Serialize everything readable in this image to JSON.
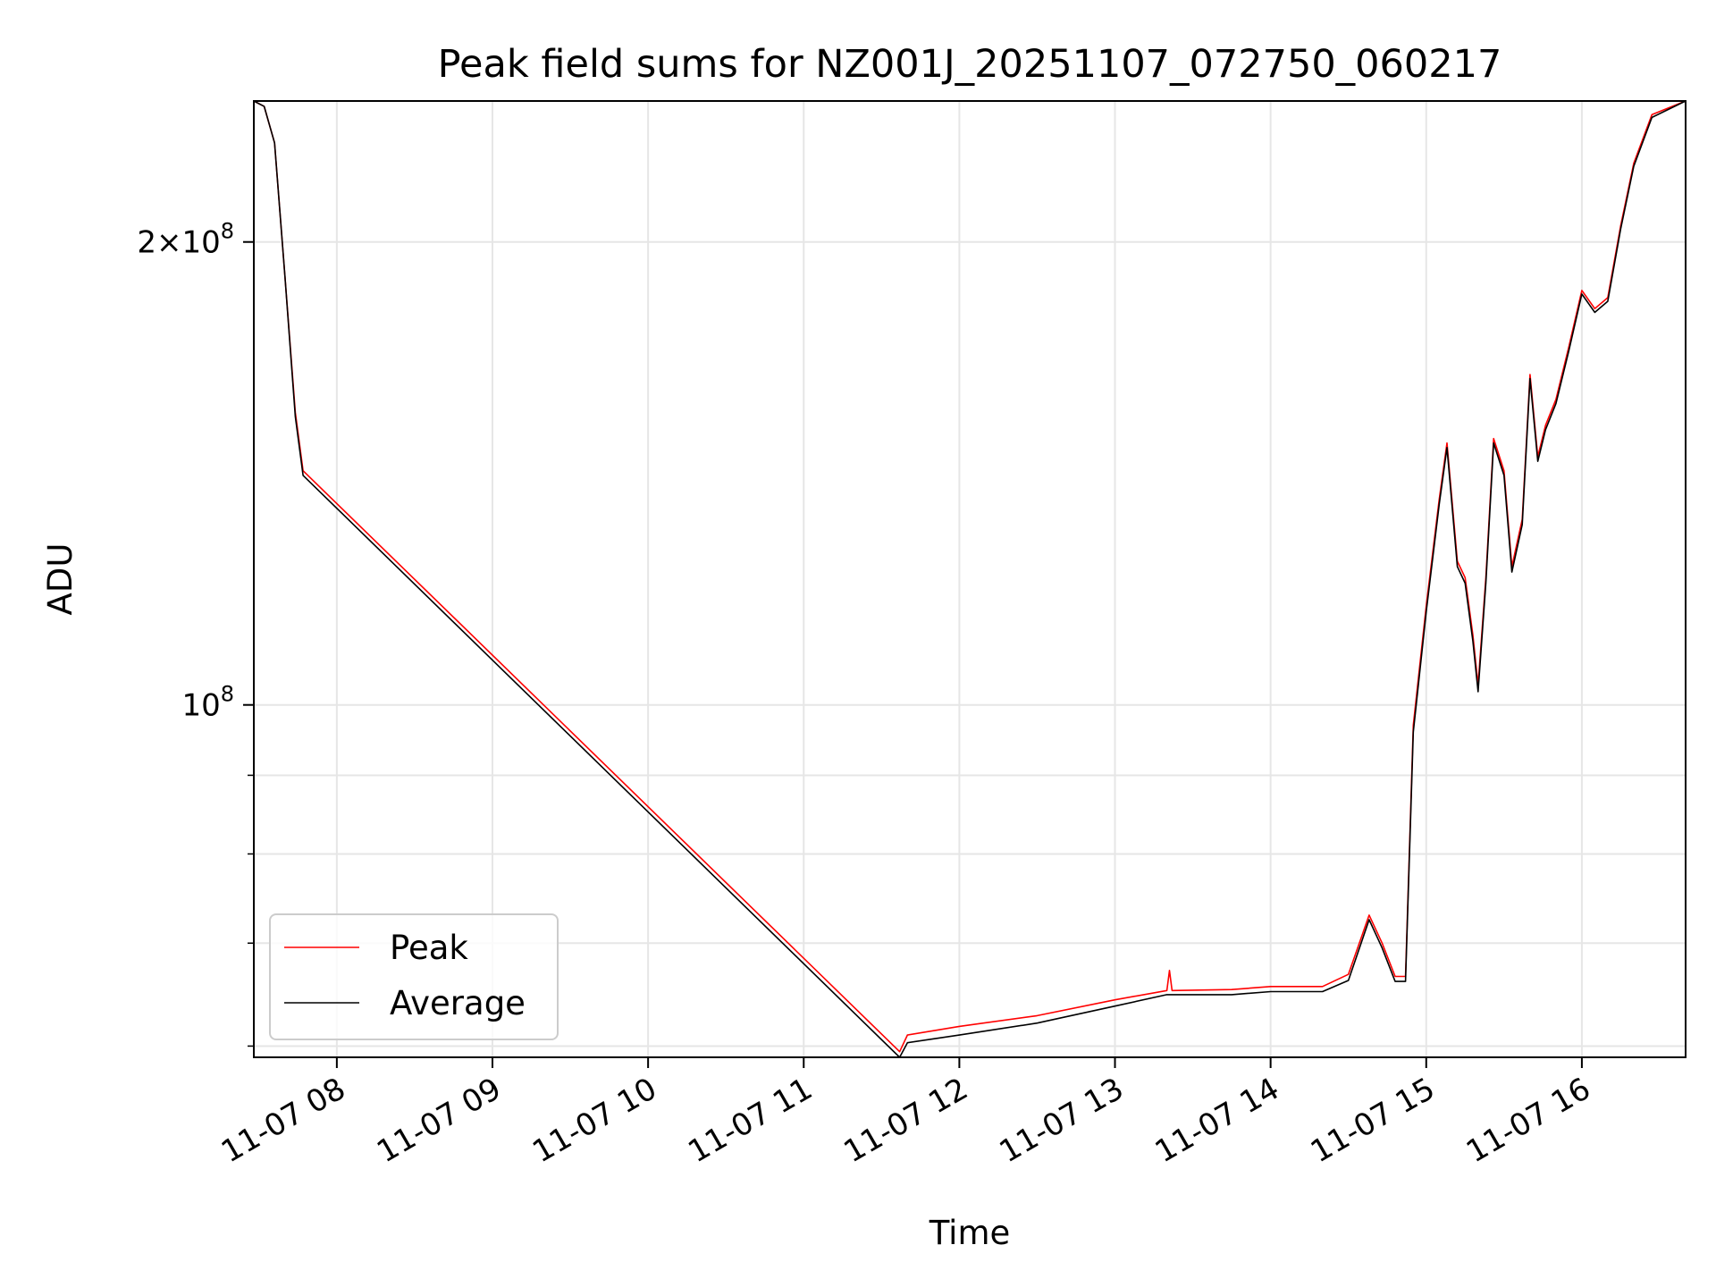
{
  "chart_data": {
    "type": "line",
    "title": "Peak field sums for NZ001J_20251107_072750_060217",
    "xlabel": "Time",
    "ylabel": "ADU",
    "y_scale": "log",
    "grid": true,
    "legend_position": "lower-left",
    "x_range": [
      "2025-11-07 07:28",
      "2025-11-07 16:40"
    ],
    "ylim": [
      59000000,
      247000000
    ],
    "x_ticks": [
      "11-07 08",
      "11-07 09",
      "11-07 10",
      "11-07 11",
      "11-07 12",
      "11-07 13",
      "11-07 14",
      "11-07 15",
      "11-07 16"
    ],
    "y_ticks": [
      {
        "value": 100000000,
        "mantissa": "",
        "exponent": "8"
      },
      {
        "value": 200000000,
        "mantissa": "2",
        "exponent": "8"
      }
    ],
    "series": [
      {
        "name": "Peak",
        "color": "#ff0000",
        "points": [
          [
            "2025-11-07 07:28",
            247000000
          ],
          [
            "2025-11-07 07:32",
            245000000
          ],
          [
            "2025-11-07 07:36",
            232000000
          ],
          [
            "2025-11-07 07:40",
            190000000
          ],
          [
            "2025-11-07 07:44",
            155000000
          ],
          [
            "2025-11-07 07:47",
            142000000
          ],
          [
            "2025-11-07 11:37",
            59500000
          ],
          [
            "2025-11-07 11:40",
            61000000
          ],
          [
            "2025-11-07 12:00",
            61800000
          ],
          [
            "2025-11-07 12:30",
            62800000
          ],
          [
            "2025-11-07 13:00",
            64300000
          ],
          [
            "2025-11-07 13:20",
            65200000
          ],
          [
            "2025-11-07 13:21",
            67200000
          ],
          [
            "2025-11-07 13:22",
            65200000
          ],
          [
            "2025-11-07 13:45",
            65300000
          ],
          [
            "2025-11-07 14:00",
            65600000
          ],
          [
            "2025-11-07 14:20",
            65600000
          ],
          [
            "2025-11-07 14:30",
            66800000
          ],
          [
            "2025-11-07 14:38",
            73000000
          ],
          [
            "2025-11-07 14:43",
            70000000
          ],
          [
            "2025-11-07 14:48",
            66600000
          ],
          [
            "2025-11-07 14:52",
            66600000
          ],
          [
            "2025-11-07 14:55",
            97000000
          ],
          [
            "2025-11-07 15:00",
            116000000
          ],
          [
            "2025-11-07 15:05",
            136000000
          ],
          [
            "2025-11-07 15:08",
            148000000
          ],
          [
            "2025-11-07 15:12",
            124000000
          ],
          [
            "2025-11-07 15:15",
            121000000
          ],
          [
            "2025-11-07 15:18",
            111000000
          ],
          [
            "2025-11-07 15:20",
            103000000
          ],
          [
            "2025-11-07 15:23",
            121000000
          ],
          [
            "2025-11-07 15:26",
            149000000
          ],
          [
            "2025-11-07 15:30",
            142000000
          ],
          [
            "2025-11-07 15:33",
            123000000
          ],
          [
            "2025-11-07 15:37",
            132000000
          ],
          [
            "2025-11-07 15:40",
            164000000
          ],
          [
            "2025-11-07 15:43",
            145000000
          ],
          [
            "2025-11-07 15:46",
            152000000
          ],
          [
            "2025-11-07 15:50",
            158000000
          ],
          [
            "2025-11-07 15:55",
            171000000
          ],
          [
            "2025-11-07 16:00",
            186000000
          ],
          [
            "2025-11-07 16:05",
            181000000
          ],
          [
            "2025-11-07 16:10",
            184000000
          ],
          [
            "2025-11-07 16:15",
            205000000
          ],
          [
            "2025-11-07 16:20",
            225000000
          ],
          [
            "2025-11-07 16:27",
            242000000
          ],
          [
            "2025-11-07 16:40",
            247000000
          ]
        ]
      },
      {
        "name": "Average",
        "color": "#000000",
        "points": [
          [
            "2025-11-07 07:28",
            247000000
          ],
          [
            "2025-11-07 07:32",
            245000000
          ],
          [
            "2025-11-07 07:36",
            232000000
          ],
          [
            "2025-11-07 07:40",
            190000000
          ],
          [
            "2025-11-07 07:44",
            154000000
          ],
          [
            "2025-11-07 07:47",
            141000000
          ],
          [
            "2025-11-07 11:37",
            59000000
          ],
          [
            "2025-11-07 11:40",
            60300000
          ],
          [
            "2025-11-07 12:00",
            61000000
          ],
          [
            "2025-11-07 12:30",
            62100000
          ],
          [
            "2025-11-07 13:00",
            63700000
          ],
          [
            "2025-11-07 13:20",
            64800000
          ],
          [
            "2025-11-07 13:45",
            64800000
          ],
          [
            "2025-11-07 14:00",
            65100000
          ],
          [
            "2025-11-07 14:20",
            65100000
          ],
          [
            "2025-11-07 14:30",
            66200000
          ],
          [
            "2025-11-07 14:38",
            72500000
          ],
          [
            "2025-11-07 14:43",
            69500000
          ],
          [
            "2025-11-07 14:48",
            66100000
          ],
          [
            "2025-11-07 14:52",
            66100000
          ],
          [
            "2025-11-07 14:55",
            96000000
          ],
          [
            "2025-11-07 15:00",
            115000000
          ],
          [
            "2025-11-07 15:05",
            135000000
          ],
          [
            "2025-11-07 15:08",
            147000000
          ],
          [
            "2025-11-07 15:12",
            123000000
          ],
          [
            "2025-11-07 15:15",
            120000000
          ],
          [
            "2025-11-07 15:18",
            110000000
          ],
          [
            "2025-11-07 15:20",
            102000000
          ],
          [
            "2025-11-07 15:23",
            120000000
          ],
          [
            "2025-11-07 15:26",
            148000000
          ],
          [
            "2025-11-07 15:30",
            141000000
          ],
          [
            "2025-11-07 15:33",
            122000000
          ],
          [
            "2025-11-07 15:37",
            131000000
          ],
          [
            "2025-11-07 15:40",
            163000000
          ],
          [
            "2025-11-07 15:43",
            144000000
          ],
          [
            "2025-11-07 15:46",
            151000000
          ],
          [
            "2025-11-07 15:50",
            157000000
          ],
          [
            "2025-11-07 15:55",
            170000000
          ],
          [
            "2025-11-07 16:00",
            185000000
          ],
          [
            "2025-11-07 16:05",
            180000000
          ],
          [
            "2025-11-07 16:10",
            183000000
          ],
          [
            "2025-11-07 16:15",
            204000000
          ],
          [
            "2025-11-07 16:20",
            224000000
          ],
          [
            "2025-11-07 16:27",
            241000000
          ],
          [
            "2025-11-07 16:40",
            247000000
          ]
        ]
      }
    ]
  }
}
